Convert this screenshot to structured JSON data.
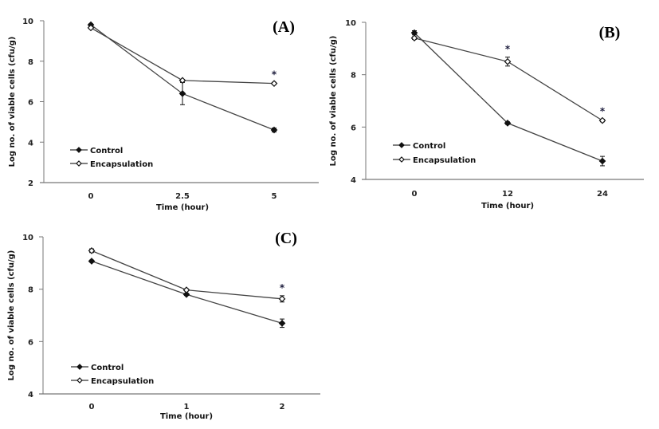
{
  "chart_data": [
    {
      "type": "line",
      "panel_label": "(A)",
      "xlabel": "Time (hour)",
      "ylabel": "Log no. of viable cells (cfu/g)",
      "categories": [
        "0",
        "2.5",
        "5"
      ],
      "ylim": [
        2,
        10
      ],
      "yticks": [
        "2",
        "4",
        "6",
        "8",
        "10"
      ],
      "legend_position": "bottom-left",
      "series": [
        {
          "name": "Control",
          "marker": "filled-diamond",
          "values": [
            9.8,
            6.4,
            4.6
          ],
          "errors": [
            0.05,
            0.55,
            0.1
          ]
        },
        {
          "name": "Encapsulation",
          "marker": "open-diamond",
          "values": [
            9.65,
            7.05,
            6.9
          ],
          "errors": [
            0.05,
            0.05,
            0.05
          ]
        }
      ],
      "significance": [
        "",
        "",
        "*"
      ]
    },
    {
      "type": "line",
      "panel_label": "(B)",
      "xlabel": "Time (hour)",
      "ylabel": "Log no. of viable cells (cfu/g)",
      "categories": [
        "0",
        "12",
        "24"
      ],
      "ylim": [
        4,
        10
      ],
      "yticks": [
        "4",
        "6",
        "8",
        "10"
      ],
      "legend_position": "bottom-left",
      "series": [
        {
          "name": "Control",
          "marker": "filled-diamond",
          "values": [
            9.6,
            6.15,
            4.7
          ],
          "errors": [
            0.08,
            0.05,
            0.18
          ]
        },
        {
          "name": "Encapsulation",
          "marker": "open-diamond",
          "values": [
            9.4,
            8.5,
            6.25
          ],
          "errors": [
            0.05,
            0.17,
            0.05
          ]
        }
      ],
      "significance": [
        "",
        "*",
        "*"
      ]
    },
    {
      "type": "line",
      "panel_label": "(C)",
      "xlabel": "Time (hour)",
      "ylabel": "Log no. of viable cells (cfu/g)",
      "categories": [
        "0",
        "1",
        "2"
      ],
      "ylim": [
        4,
        10
      ],
      "yticks": [
        "4",
        "6",
        "8",
        "10"
      ],
      "legend_position": "bottom-left",
      "series": [
        {
          "name": "Control",
          "marker": "filled-diamond",
          "values": [
            9.07,
            7.8,
            6.7
          ],
          "errors": [
            0.04,
            0.04,
            0.16
          ]
        },
        {
          "name": "Encapsulation",
          "marker": "open-diamond",
          "values": [
            9.47,
            7.97,
            7.63
          ],
          "errors": [
            0.07,
            0.04,
            0.12
          ]
        }
      ],
      "significance": [
        "",
        "",
        "*"
      ]
    }
  ]
}
